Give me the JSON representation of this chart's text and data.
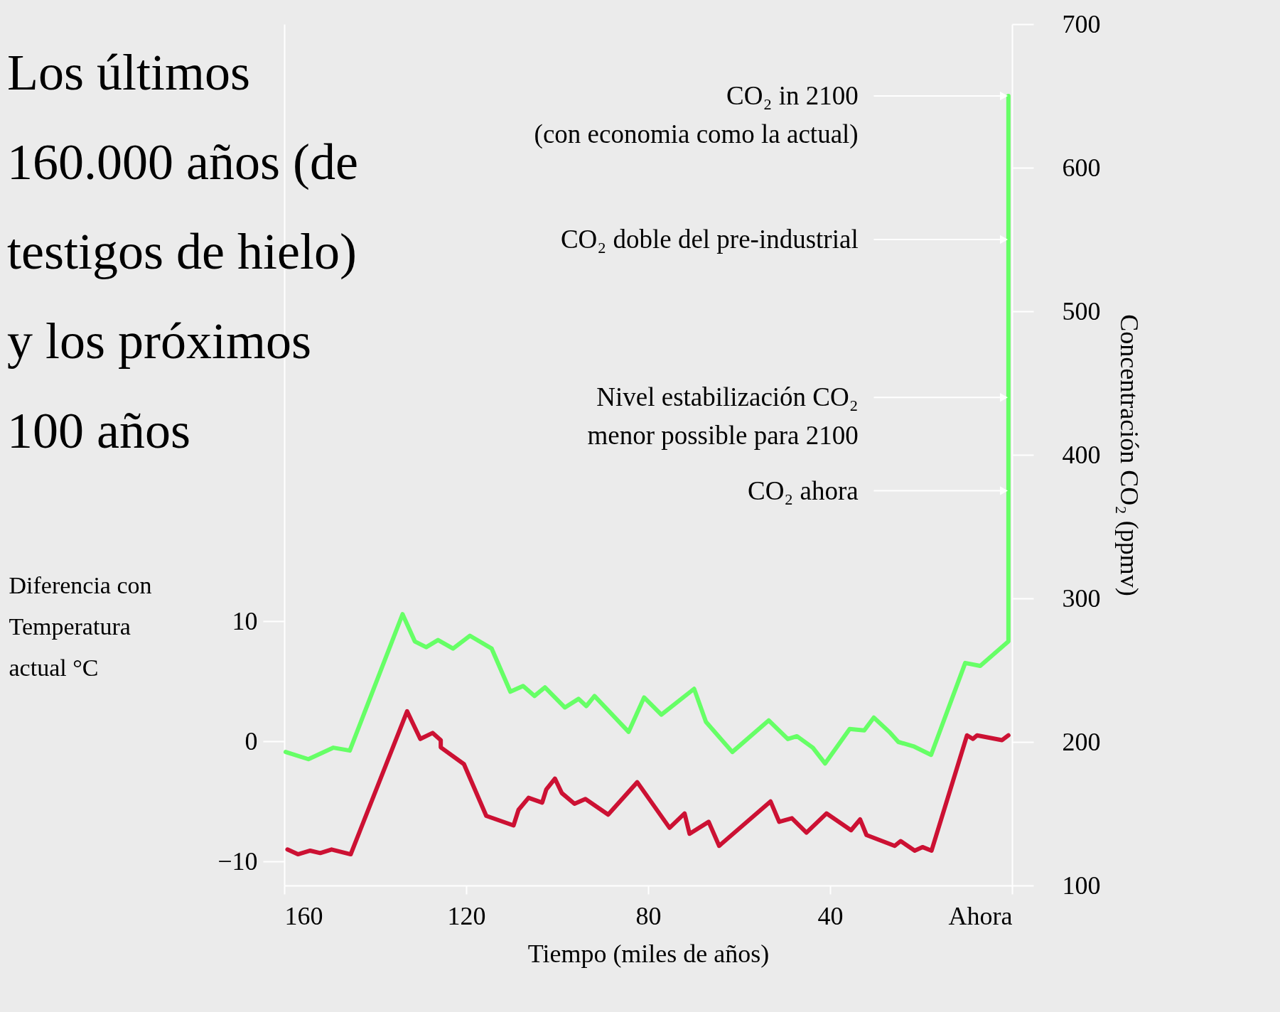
{
  "chart_data": {
    "type": "line",
    "title": "Los últimos\n160.000 años (de\ntestigos de hielo)\ny los próximos\n100 años",
    "xlabel": "Tiempo (miles de años)",
    "ylabel": "Diferencia con\nTemperatura\nactual °C",
    "y2label": "Concentración CO₂ (ppmv)",
    "ref_lines": [
      {
        "axis": "y2",
        "value": 650,
        "label": "CO₂ in 2100\n(con economia como la actual)"
      },
      {
        "axis": "y2",
        "value": 550,
        "label": "CO₂ doble del pre-industrial"
      },
      {
        "axis": "y2",
        "value": 440,
        "label": "Nivel estabilización CO₂\nmenor possible para 2100"
      },
      {
        "axis": "y2",
        "value": 375,
        "label": "CO₂ ahora"
      }
    ],
    "xlim": [
      160,
      0
    ],
    "xticks": [
      160,
      120,
      80,
      40,
      {
        "value": 0,
        "label": "Ahora"
      }
    ],
    "ylim": [
      -12,
      59.7
    ],
    "yticks": [
      -10,
      0,
      10
    ],
    "y2lim": [
      100,
      700
    ],
    "y2ticks": [
      100,
      200,
      300,
      400,
      500,
      600,
      700
    ],
    "series": [
      {
        "color": "#cc1133",
        "x": [
          159.3,
          157.0,
          154.3,
          152.1,
          149.6,
          145.4,
          133.0,
          130.1,
          127.4,
          125.6,
          125.6,
          120.5,
          115.6,
          109.6,
          108.5,
          106.3,
          103.3,
          102.4,
          100.5,
          99.0,
          96.2,
          93.8,
          88.8,
          82.4,
          75.3,
          72.0,
          70.9,
          66.7,
          64.4,
          53.1,
          51.2,
          48.4,
          45.2,
          40.8,
          35.4,
          33.4,
          32.0,
          25.8,
          24.5,
          21.4,
          19.7,
          17.7,
          9.9,
          8.6,
          7.7,
          2.2,
          0.8
        ],
        "values": [
          -9.0,
          -9.4,
          -9.1,
          -9.3,
          -9.0,
          -9.4,
          2.5,
          0.2,
          0.7,
          0.1,
          -0.5,
          -1.9,
          -6.2,
          -7.0,
          -5.7,
          -4.7,
          -5.1,
          -4.0,
          -3.1,
          -4.3,
          -5.2,
          -4.8,
          -6.1,
          -3.4,
          -7.2,
          -6.0,
          -7.7,
          -6.7,
          -8.7,
          -5.0,
          -6.7,
          -6.4,
          -7.6,
          -6.0,
          -7.4,
          -6.5,
          -7.8,
          -8.7,
          -8.3,
          -9.1,
          -8.8,
          -9.1,
          0.5,
          0.2,
          0.5,
          0.1,
          0.5
        ]
      },
      {
        "color": "#66ff66",
        "axis": "y2",
        "x": [
          159.7,
          154.7,
          149.2,
          145.6,
          134.0,
          131.3,
          128.8,
          126.2,
          122.9,
          119.2,
          114.4,
          110.3,
          107.5,
          105.0,
          102.7,
          98.3,
          95.3,
          93.6,
          91.8,
          84.3,
          80.9,
          77.1,
          69.9,
          67.3,
          61.5,
          53.5,
          49.3,
          47.3,
          43.8,
          41.1,
          35.7,
          32.5,
          30.4,
          27.0,
          25.0,
          21.7,
          17.8,
          10.3,
          7.0,
          0.8,
          0.8
        ],
        "values": [
          193,
          188,
          196,
          194,
          289,
          270,
          266,
          271,
          265,
          274,
          265,
          235,
          239,
          232,
          238,
          224,
          230,
          225,
          232,
          207,
          231,
          219,
          237,
          214,
          193,
          215,
          202,
          204,
          196,
          185,
          209,
          208,
          217,
          207,
          200,
          197,
          191,
          255,
          253,
          270,
          650
        ]
      }
    ]
  }
}
